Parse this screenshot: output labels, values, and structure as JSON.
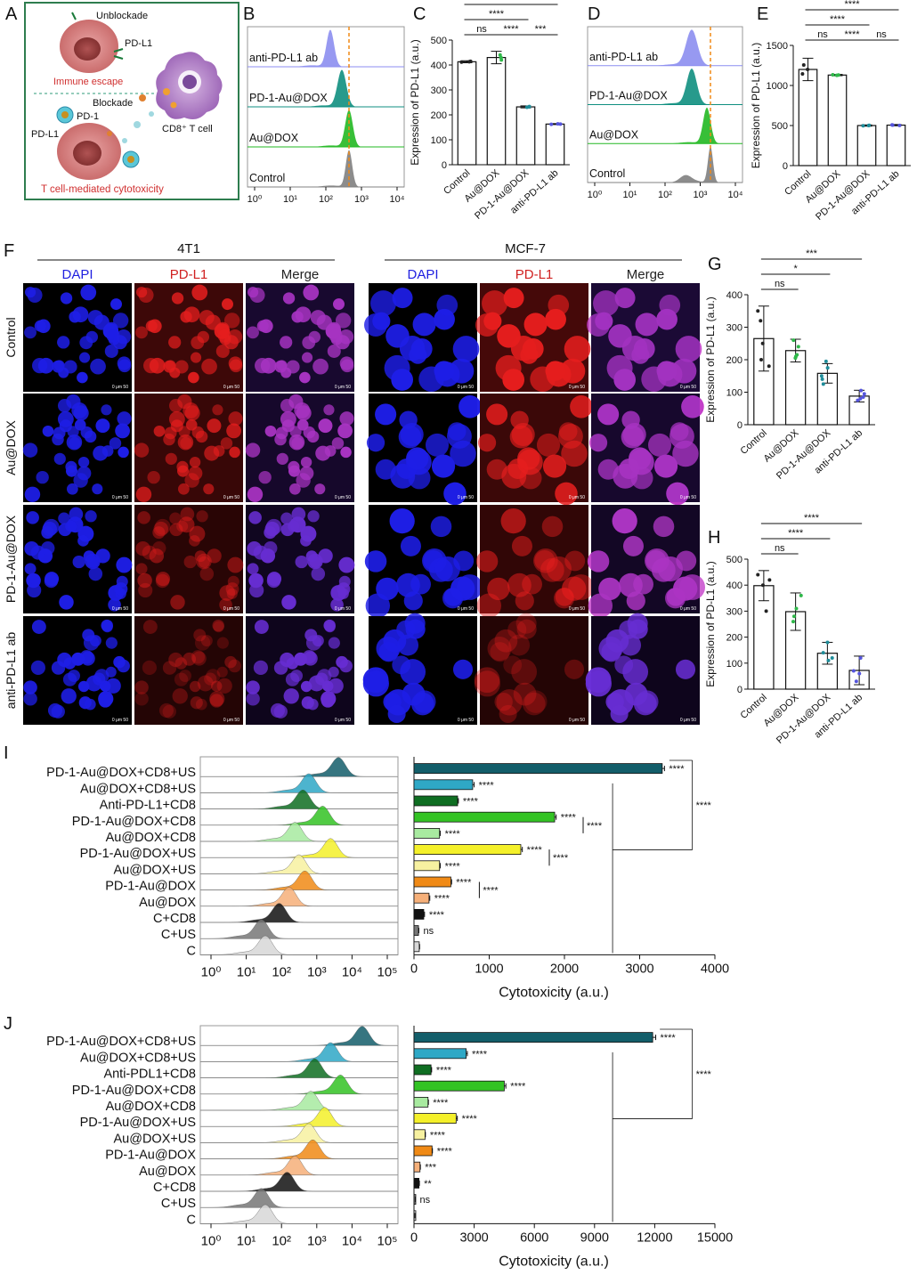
{
  "panel_letters": [
    "A",
    "B",
    "C",
    "D",
    "E",
    "F",
    "G",
    "H",
    "I",
    "J"
  ],
  "schematic": {
    "unblockade": "Unblockade",
    "pdl1_top": "PD-L1",
    "immune_escape": "Immune escape",
    "blockade": "Blockade",
    "pd1": "PD-1",
    "pdl1_bottom": "PD-L1",
    "cd8_tcell": "CD8⁺ T cell",
    "tcell_cytotoxicity": "T cell-mediated cytotoxicity",
    "colors": {
      "frame": "#2e7d4f",
      "red_text": "#d03030",
      "tumor": "#d98080",
      "tcell": "#b88ac8"
    }
  },
  "flow_B": {
    "labels": [
      "anti-PD-L1 ab",
      "PD-1-Au@DOX",
      "Au@DOX",
      "Control"
    ],
    "ticks": [
      "10⁰",
      "10¹",
      "10²",
      "10³",
      "10⁴"
    ],
    "colors": [
      "#8c8ef0",
      "#0f8f80",
      "#22b822",
      "#808080"
    ]
  },
  "flow_D": {
    "labels": [
      "anti-PD-L1 ab",
      "PD-1-Au@DOX",
      "Au@DOX",
      "Control"
    ],
    "ticks": [
      "10⁰",
      "10¹",
      "10²",
      "10³",
      "10⁴"
    ],
    "colors": [
      "#8c8ef0",
      "#0f8f80",
      "#22b822",
      "#808080"
    ]
  },
  "micrograph": {
    "cell_lines": [
      "4T1",
      "MCF-7"
    ],
    "channels": [
      "DAPI",
      "PD-L1",
      "Merge"
    ],
    "rows": [
      "Control",
      "Au@DOX",
      "PD-1-Au@DOX",
      "anti-PD-L1 ab"
    ],
    "channel_colors": [
      "#2020e0",
      "#d02020",
      "#222222"
    ],
    "red_intensity_4T1": [
      0.85,
      0.75,
      0.45,
      0.35
    ],
    "red_intensity_MCF7": [
      1.0,
      0.8,
      0.6,
      0.35
    ],
    "scale_text": "0   μm   50"
  },
  "chart_data": [
    {
      "panel": "C",
      "type": "bar",
      "ylabel": "Expression of PD-L1 (a.u.)",
      "categories": [
        "Control",
        "Au@DOX",
        "PD-1-Au@DOX",
        "anti-PD-L1 ab"
      ],
      "values": [
        413,
        430,
        232,
        163
      ],
      "errors": [
        4,
        25,
        4,
        2
      ],
      "ylim": [
        0,
        500
      ],
      "yticks": [
        0,
        100,
        200,
        300,
        400,
        500
      ],
      "dot_colors": [
        "#222222",
        "#2fb84a",
        "#1f8d9a",
        "#5555dd"
      ],
      "sig": [
        {
          "from": 0,
          "to": 1,
          "level": 1,
          "text": "ns"
        },
        {
          "from": 1,
          "to": 2,
          "level": 1,
          "text": "****"
        },
        {
          "from": 2,
          "to": 3,
          "level": 1,
          "text": "***"
        },
        {
          "from": 0,
          "to": 2,
          "level": 2,
          "text": "****"
        },
        {
          "from": 0,
          "to": 3,
          "level": 3,
          "text": "****"
        }
      ]
    },
    {
      "panel": "E",
      "type": "bar",
      "ylabel": "Expression of PD-L1 (a.u.)",
      "categories": [
        "Control",
        "Au@DOX",
        "PD-1-Au@DOX",
        "anti-PD-L1 ab"
      ],
      "values": [
        1200,
        1130,
        500,
        505
      ],
      "errors": [
        140,
        8,
        8,
        8
      ],
      "ylim": [
        0,
        1500
      ],
      "yticks": [
        0,
        500,
        1000,
        1500
      ],
      "dot_colors": [
        "#222222",
        "#2fb84a",
        "#1f8d9a",
        "#5555dd"
      ],
      "sig": [
        {
          "from": 0,
          "to": 1,
          "level": 1,
          "text": "ns"
        },
        {
          "from": 1,
          "to": 2,
          "level": 1,
          "text": "****"
        },
        {
          "from": 2,
          "to": 3,
          "level": 1,
          "text": "ns"
        },
        {
          "from": 0,
          "to": 2,
          "level": 2,
          "text": "****"
        },
        {
          "from": 0,
          "to": 3,
          "level": 3,
          "text": "****"
        }
      ]
    },
    {
      "panel": "G",
      "type": "bar",
      "ylabel": "Expression of PD-L1 (a.u.)",
      "categories": [
        "Control",
        "Au@DOX",
        "PD-1-Au@DOX",
        "anti-PD-L1 ab"
      ],
      "values": [
        265,
        228,
        158,
        88
      ],
      "errors": [
        100,
        35,
        30,
        18
      ],
      "ylim": [
        0,
        400
      ],
      "yticks": [
        0,
        100,
        200,
        300,
        400
      ],
      "dot_colors": [
        "#222222",
        "#2fb84a",
        "#1f8d9a",
        "#5555dd"
      ],
      "points": [
        [
          350,
          320,
          250,
          180,
          200
        ],
        [
          260,
          240,
          210,
          215,
          205
        ],
        [
          195,
          175,
          150,
          125,
          140
        ],
        [
          105,
          95,
          80,
          75,
          85
        ]
      ],
      "sig": [
        {
          "from": 0,
          "to": 1,
          "level": 1,
          "text": "ns"
        },
        {
          "from": 0,
          "to": 2,
          "level": 2,
          "text": "*"
        },
        {
          "from": 0,
          "to": 3,
          "level": 3,
          "text": "***"
        }
      ]
    },
    {
      "panel": "H",
      "type": "bar",
      "ylabel": "Expression of PD-L1 (a.u.)",
      "categories": [
        "Control",
        "Au@DOX",
        "PD-1-Au@DOX",
        "anti-PD-L1 ab"
      ],
      "values": [
        398,
        298,
        138,
        72
      ],
      "errors": [
        58,
        72,
        42,
        55
      ],
      "ylim": [
        0,
        500
      ],
      "yticks": [
        0,
        100,
        200,
        300,
        400,
        500
      ],
      "dot_colors": [
        "#222222",
        "#2fb84a",
        "#1f8d9a",
        "#5555dd"
      ],
      "points": [
        [
          440,
          420,
          300,
          400
        ],
        [
          360,
          310,
          260,
          280
        ],
        [
          180,
          140,
          110,
          120
        ],
        [
          120,
          60,
          30,
          70
        ]
      ],
      "sig": [
        {
          "from": 0,
          "to": 1,
          "level": 1,
          "text": "ns"
        },
        {
          "from": 0,
          "to": 2,
          "level": 2,
          "text": "****"
        },
        {
          "from": 0,
          "to": 3,
          "level": 3,
          "text": "****"
        }
      ]
    },
    {
      "panel": "I",
      "type": "bar",
      "orientation": "horizontal",
      "xlabel": "Cytotoxicity (a.u.)",
      "categories": [
        "PD-1-Au@DOX+CD8+US",
        "Au@DOX+CD8+US",
        "Anti-PD-L1+CD8",
        "PD-1-Au@DOX+CD8",
        "Au@DOX+CD8",
        "PD-1-Au@DOX+US",
        "Au@DOX+US",
        "PD-1-Au@DOX",
        "Au@DOX",
        "C+CD8",
        "C+US",
        "C"
      ],
      "values": [
        3300,
        780,
        580,
        1870,
        340,
        1420,
        340,
        490,
        200,
        130,
        60,
        70
      ],
      "errors": [
        30,
        20,
        10,
        20,
        10,
        20,
        10,
        10,
        10,
        10,
        5,
        5
      ],
      "xlim": [
        0,
        4000
      ],
      "xticks": [
        0,
        1000,
        2000,
        3000,
        4000
      ],
      "labels_sig": [
        "****",
        "****",
        "****",
        "****",
        "****",
        "****",
        "****",
        "****",
        "****",
        "****",
        "ns",
        ""
      ],
      "brackets": [
        {
          "from": 3,
          "to": 4,
          "text": "****"
        },
        {
          "from": 5,
          "to": 6,
          "text": "****"
        },
        {
          "from": 7,
          "to": 8,
          "text": "****"
        }
      ],
      "big_bracket_text": "****",
      "colors": [
        "#135e6a",
        "#2fa8c6",
        "#0f6e22",
        "#33c324",
        "#a8eaa0",
        "#f4f02a",
        "#f7f1a0",
        "#f08a16",
        "#f6b07a",
        "#111111",
        "#777777",
        "#d8d8d8"
      ],
      "flow_ticks": [
        "10⁰",
        "10¹",
        "10²",
        "10³",
        "10⁴",
        "10⁵"
      ],
      "flow_peaks": [
        0.7,
        0.55,
        0.52,
        0.62,
        0.48,
        0.66,
        0.5,
        0.53,
        0.45,
        0.4,
        0.31,
        0.33
      ]
    },
    {
      "panel": "J",
      "type": "bar",
      "orientation": "horizontal",
      "xlabel": "Cytotoxicity (a.u.)",
      "categories": [
        "PD-1-Au@DOX+CD8+US",
        "Au@DOX+CD8+US",
        "Anti-PDL1+CD8",
        "PD-1-Au@DOX+CD8",
        "Au@DOX+CD8",
        "PD-1-Au@DOX+US",
        "Au@DOX+US",
        "PD-1-Au@DOX",
        "Au@DOX",
        "C+CD8",
        "C+US",
        "C"
      ],
      "values": [
        11900,
        2600,
        850,
        4500,
        700,
        2100,
        550,
        900,
        300,
        250,
        60,
        40
      ],
      "errors": [
        150,
        60,
        30,
        80,
        20,
        60,
        20,
        20,
        20,
        20,
        5,
        5
      ],
      "xlim": [
        0,
        15000
      ],
      "xticks": [
        0,
        3000,
        6000,
        9000,
        12000,
        15000
      ],
      "labels_sig": [
        "****",
        "****",
        "****",
        "****",
        "****",
        "****",
        "****",
        "****",
        "***",
        "**",
        "ns",
        ""
      ],
      "brackets": [],
      "big_bracket_text": "****",
      "colors": [
        "#135e6a",
        "#2fa8c6",
        "#0f6e22",
        "#33c324",
        "#a8eaa0",
        "#f4f02a",
        "#f7f1a0",
        "#f08a16",
        "#f6b07a",
        "#111111",
        "#777777",
        "#d8d8d8"
      ],
      "flow_ticks": [
        "10⁰",
        "10¹",
        "10²",
        "10³",
        "10⁴",
        "10⁵"
      ],
      "flow_peaks": [
        0.82,
        0.66,
        0.58,
        0.71,
        0.56,
        0.63,
        0.55,
        0.57,
        0.48,
        0.44,
        0.31,
        0.33
      ]
    }
  ]
}
